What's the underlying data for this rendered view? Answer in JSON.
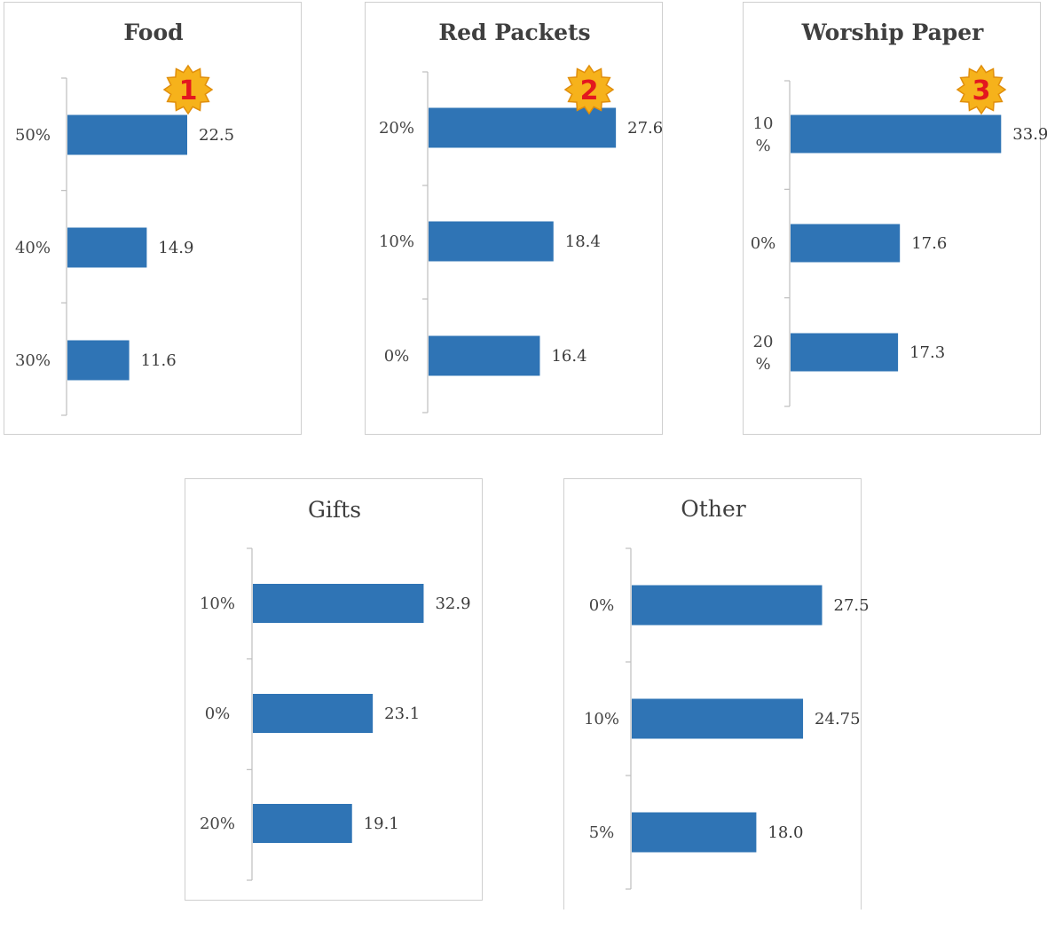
{
  "colors": {
    "bar": "#2f74b5",
    "badge": "#f6b21b",
    "badge_number": "#e3171f"
  },
  "chart_data": [
    {
      "type": "bar",
      "orientation": "horizontal",
      "title": "Food",
      "categories": [
        "50%",
        "40%",
        "30%"
      ],
      "values": [
        22.5,
        14.9,
        11.6
      ],
      "badge": "1"
    },
    {
      "type": "bar",
      "orientation": "horizontal",
      "title": "Red Packets",
      "categories": [
        "20%",
        "10%",
        "0%"
      ],
      "values": [
        27.6,
        18.4,
        16.4
      ],
      "badge": "2"
    },
    {
      "type": "bar",
      "orientation": "horizontal",
      "title": "Worship Paper",
      "categories": [
        "10 %",
        "0%",
        "20 %"
      ],
      "values": [
        33.9,
        17.6,
        17.3
      ],
      "badge": "3"
    },
    {
      "type": "bar",
      "orientation": "horizontal",
      "title": "Gifts",
      "categories": [
        "10%",
        "0%",
        "20%"
      ],
      "values": [
        32.9,
        23.1,
        19.1
      ]
    },
    {
      "type": "bar",
      "orientation": "horizontal",
      "title": "Other",
      "categories": [
        "0%",
        "10%",
        "5%"
      ],
      "values": [
        27.5,
        24.75,
        18.0
      ],
      "value_labels": [
        "27.5",
        "24.75",
        "18.0"
      ]
    }
  ]
}
